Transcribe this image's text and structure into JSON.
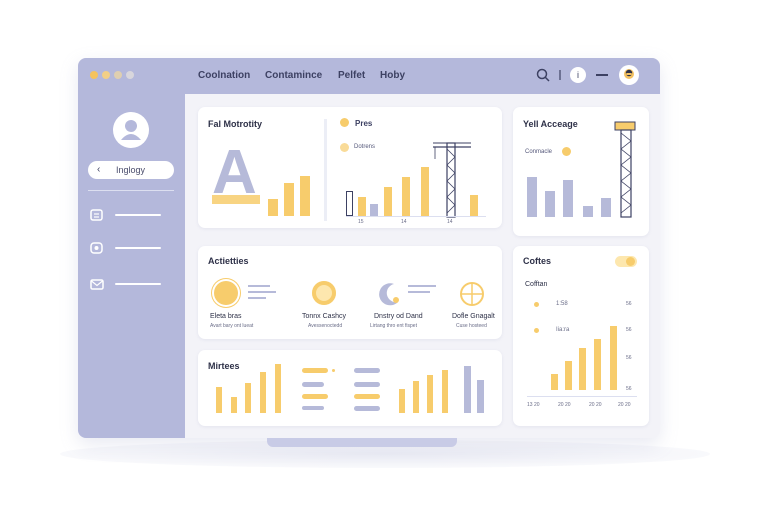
{
  "topbar": {
    "nav": [
      "Coolnation",
      "Contamince",
      "Pelfet",
      "Hoby"
    ],
    "info_label": "i"
  },
  "sidebar": {
    "back_label": "Inglogy",
    "back_icon": "chevron-left-icon",
    "items": [
      {
        "icon": "document-icon"
      },
      {
        "icon": "chart-icon"
      },
      {
        "icon": "mail-icon"
      }
    ]
  },
  "cards": {
    "fall_maturity": {
      "title": "Fal Motrotity",
      "letter": "A",
      "legend": [
        "Pres",
        "Dotrens"
      ],
      "x_labels": [
        "15",
        "14",
        "14"
      ]
    },
    "yell_average": {
      "title": "Yell Acceage",
      "legend": "Conmacle"
    },
    "activities": {
      "title": "Actietties",
      "items": [
        {
          "label": "Eleta bras",
          "sub": "Avart bary ont lueat"
        },
        {
          "label": "Tonnx Cashcy",
          "sub": "Avessenoctedd"
        },
        {
          "label": "Dnstry od Dand",
          "sub": "Lirtang thro ent fispet"
        },
        {
          "label": "Dofle Gnagalt",
          "sub": "Cuse hosteed"
        }
      ]
    },
    "coffees": {
      "title": "Coftes",
      "subtitle": "Cofftan",
      "legend": [
        "1:58",
        "Iia:ra"
      ],
      "y_labels": [
        "56",
        "56",
        "56",
        "56"
      ],
      "x_labels": [
        "13 20",
        "20 20",
        "20 20",
        "20 20"
      ]
    },
    "metrics": {
      "title": "Mirtees"
    }
  },
  "colors": {
    "accent": "#f7cc6c",
    "lavender": "#b4b8db",
    "bar_lavender": "#b6bad9",
    "text": "#2e3148"
  }
}
